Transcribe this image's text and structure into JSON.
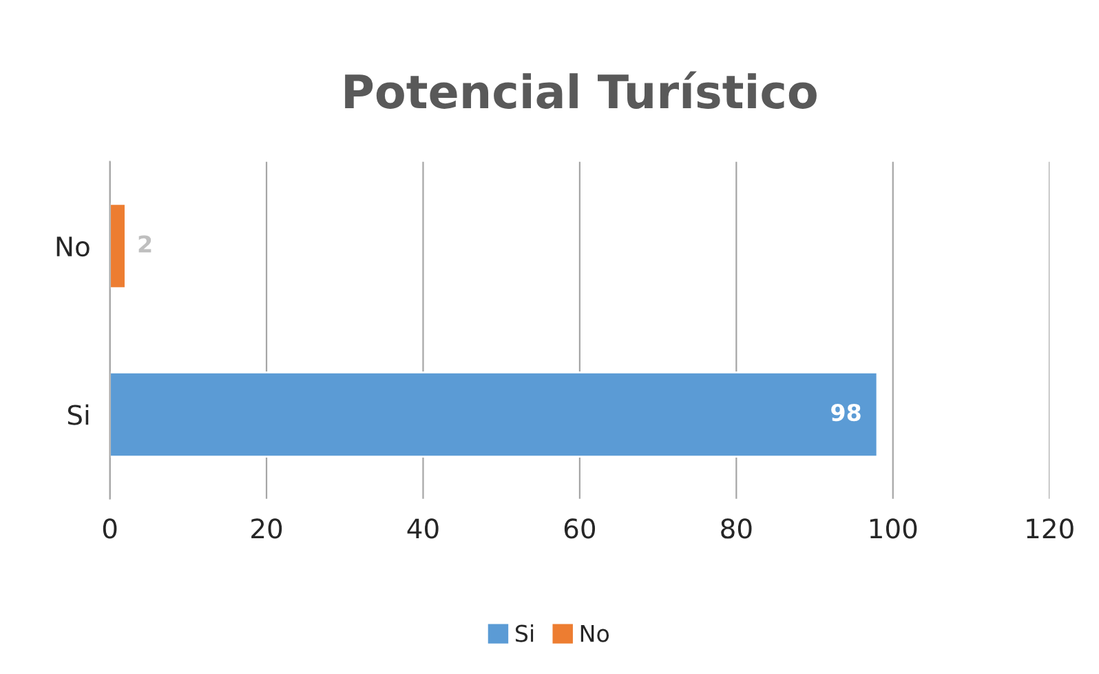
{
  "chart_data": {
    "type": "bar",
    "orientation": "horizontal",
    "title": "Potencial Turístico",
    "categories": [
      "No",
      "Si"
    ],
    "series": [
      {
        "name": "Si",
        "color": "#5b9bd5",
        "values": [
          null,
          98
        ]
      },
      {
        "name": "No",
        "color": "#ed7d31",
        "values": [
          2,
          null
        ]
      }
    ],
    "xlim": [
      0,
      120
    ],
    "xticks": [
      0,
      20,
      40,
      60,
      80,
      100,
      120
    ],
    "grid": "x",
    "legend": "bottom",
    "data_labels": true
  }
}
